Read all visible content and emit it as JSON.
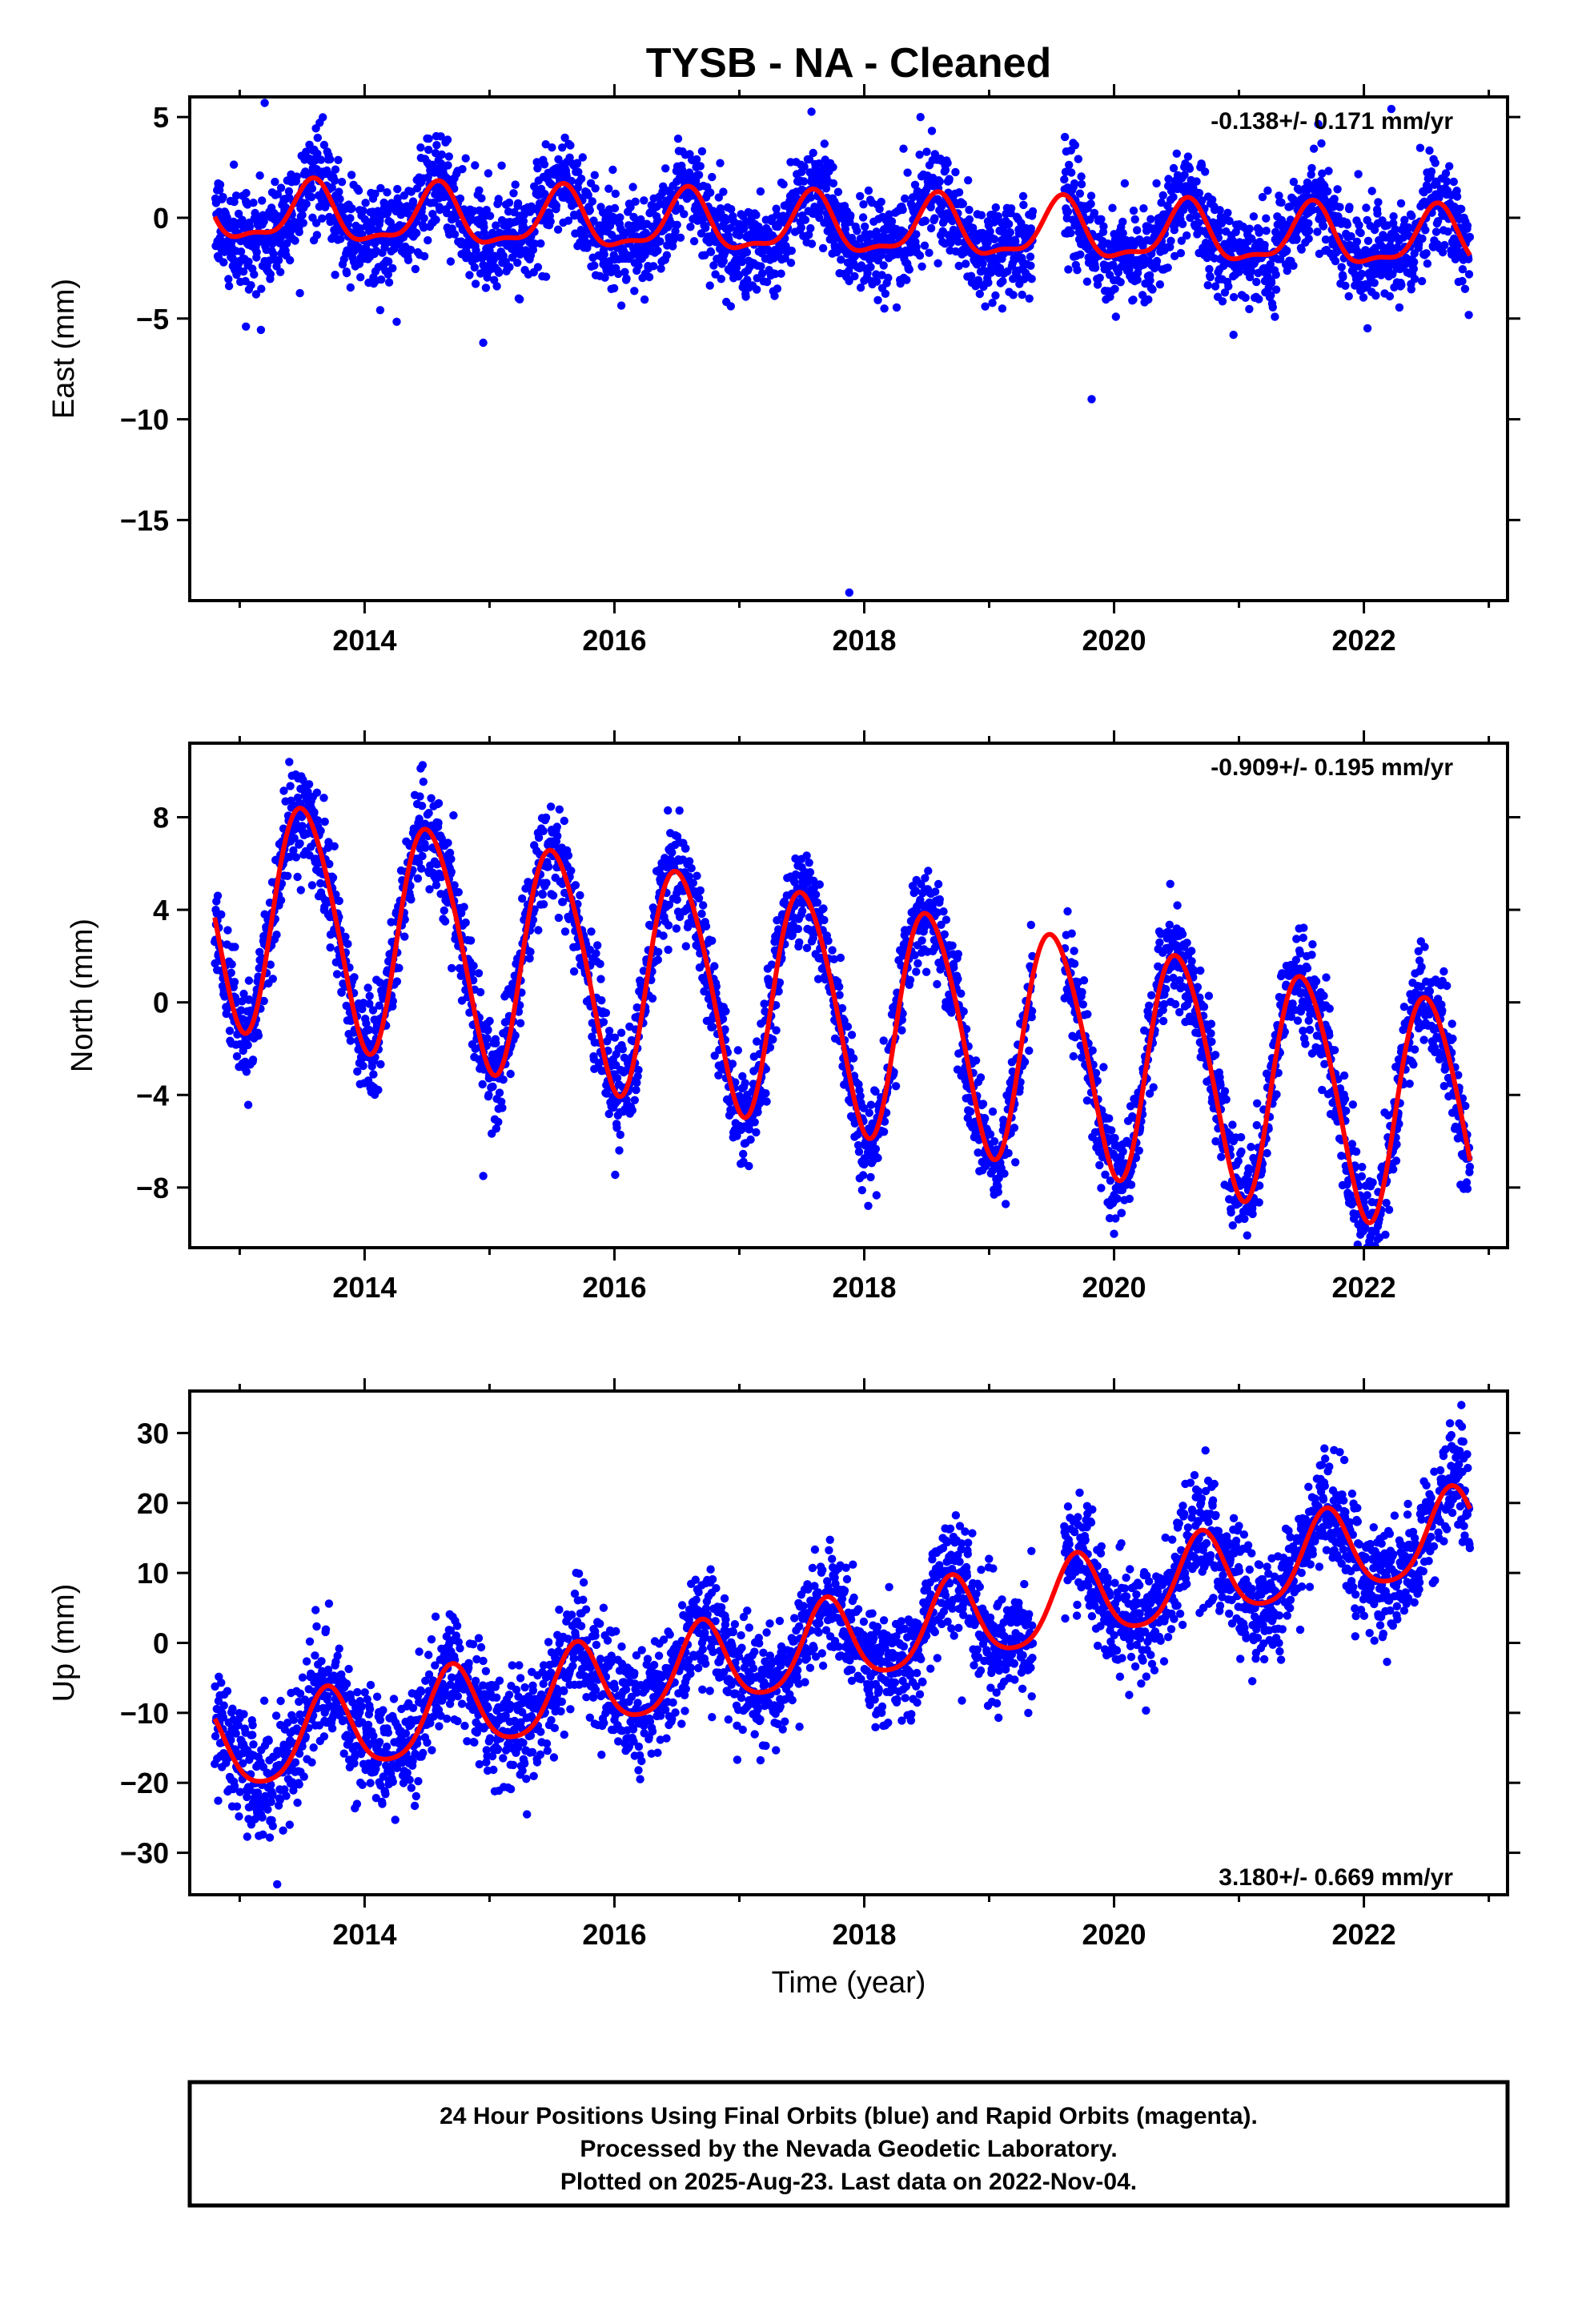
{
  "title": "TYSB  - NA - Cleaned",
  "footer": {
    "line1": "24 Hour Positions Using Final Orbits (blue) and Rapid Orbits (magenta).",
    "line2": "Processed by the Nevada Geodetic Laboratory.",
    "line3": "Plotted on 2025-Aug-23. Last data on 2022-Nov-04."
  },
  "colors": {
    "points": "#0000ff",
    "fit": "#ff0000",
    "axes": "#000000"
  },
  "chart_data": [
    {
      "type": "scatter",
      "ylabel": "East (mm)",
      "xlabel": "",
      "rate_label": "-0.138+/- 0.171 mm/yr",
      "rate_position": "top-right",
      "xlim": [
        2012.6,
        2023.15
      ],
      "ylim": [
        -19.0,
        6.0
      ],
      "xticks": [
        2014,
        2016,
        2018,
        2020,
        2022
      ],
      "xtick_labels": [
        "2014",
        "2016",
        "2018",
        "2020",
        "2022"
      ],
      "yticks": [
        5,
        0,
        -5,
        -10,
        -15
      ],
      "ytick_labels": [
        "5",
        "0",
        "−5",
        "−10",
        "−15"
      ],
      "data_range": [
        2012.8,
        2022.85
      ],
      "gaps": [
        [
          2019.35,
          2019.6
        ]
      ],
      "trend": {
        "start": 0.2,
        "slope": -0.138
      },
      "seasonal": {
        "annual_amp": 1.4,
        "annual_peak": 0.58,
        "semi_amp": 0.5,
        "semi_peak": 0.6
      },
      "scatter_sd": 1.2,
      "outliers": [
        [
          2017.88,
          -18.6
        ],
        [
          2019.82,
          -9.0
        ],
        [
          2014.95,
          -6.2
        ],
        [
          2013.05,
          -5.4
        ],
        [
          2013.2,
          5.7
        ],
        [
          2018.45,
          5.0
        ],
        [
          2022.22,
          5.4
        ]
      ]
    },
    {
      "type": "scatter",
      "ylabel": "North (mm)",
      "xlabel": "",
      "rate_label": "-0.909+/- 0.195 mm/yr",
      "rate_position": "top-right",
      "xlim": [
        2012.6,
        2023.15
      ],
      "ylim": [
        -10.6,
        11.2
      ],
      "xticks": [
        2014,
        2016,
        2018,
        2020,
        2022
      ],
      "xtick_labels": [
        "2014",
        "2016",
        "2018",
        "2020",
        "2022"
      ],
      "yticks": [
        8,
        4,
        0,
        -4,
        -8
      ],
      "ytick_labels": [
        "8",
        "4",
        "0",
        "−4",
        "−8"
      ],
      "data_range": [
        2012.8,
        2022.85
      ],
      "gaps": [
        [
          2019.35,
          2019.6
        ]
      ],
      "trend": {
        "start": 4.2,
        "slope": -0.909
      },
      "seasonal": {
        "annual_amp": 5.0,
        "annual_peak": 0.52,
        "semi_amp": 0.5,
        "semi_peak": 0.35
      },
      "scatter_sd": 1.1,
      "outliers": [
        [
          2014.95,
          -7.5
        ],
        [
          2020.0,
          -10.0
        ]
      ]
    },
    {
      "type": "scatter",
      "ylabel": "Up (mm)",
      "xlabel": "Time (year)",
      "rate_label": "3.180+/- 0.669 mm/yr",
      "rate_position": "bottom-right",
      "xlim": [
        2012.6,
        2023.15
      ],
      "ylim": [
        -36.0,
        36.0
      ],
      "xticks": [
        2014,
        2016,
        2018,
        2020,
        2022
      ],
      "xtick_labels": [
        "2014",
        "2016",
        "2018",
        "2020",
        "2022"
      ],
      "yticks": [
        30,
        20,
        10,
        0,
        -10,
        -20,
        -30
      ],
      "ytick_labels": [
        "30",
        "20",
        "10",
        "0",
        "−10",
        "−20",
        "−30"
      ],
      "data_range": [
        2012.8,
        2022.85
      ],
      "gaps": [
        [
          2019.35,
          2019.6
        ]
      ],
      "trend": {
        "start": -16.0,
        "slope": 3.18
      },
      "seasonal": {
        "annual_amp": 6.0,
        "annual_peak": 0.7,
        "semi_amp": 1.0,
        "semi_peak": 0.2
      },
      "scatter_sd": 4.0,
      "outliers": [
        [
          2013.3,
          -34.5
        ],
        [
          2013.4,
          -26.0
        ],
        [
          2022.78,
          34.0
        ]
      ]
    }
  ]
}
